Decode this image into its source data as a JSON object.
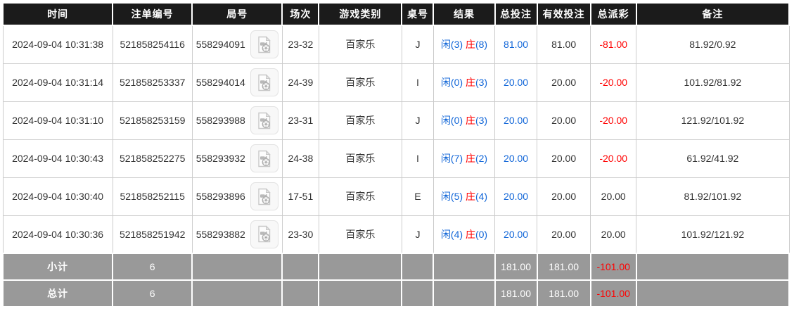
{
  "table": {
    "headers": [
      "时间",
      "注单编号",
      "局号",
      "场次",
      "游戏类别",
      "桌号",
      "结果",
      "总投注",
      "有效投注",
      "总派彩",
      "备注"
    ],
    "rows": [
      {
        "time": "2024-09-04 10:31:38",
        "bet_no": "521858254116",
        "round_no": "558294091",
        "session": "23-32",
        "game_type": "百家乐",
        "table_no": "J",
        "result_player": "闲(3)",
        "result_banker": "庄",
        "result_banker_count": "(8)",
        "total_bet": "81.00",
        "valid_bet": "81.00",
        "payout": "-81.00",
        "remark": "81.92/0.92"
      },
      {
        "time": "2024-09-04 10:31:14",
        "bet_no": "521858253337",
        "round_no": "558294014",
        "session": "24-39",
        "game_type": "百家乐",
        "table_no": "I",
        "result_player": "闲(0)",
        "result_banker": "庄",
        "result_banker_count": "(3)",
        "total_bet": "20.00",
        "valid_bet": "20.00",
        "payout": "-20.00",
        "remark": "101.92/81.92"
      },
      {
        "time": "2024-09-04 10:31:10",
        "bet_no": "521858253159",
        "round_no": "558293988",
        "session": "23-31",
        "game_type": "百家乐",
        "table_no": "J",
        "result_player": "闲(0)",
        "result_banker": "庄",
        "result_banker_count": "(3)",
        "total_bet": "20.00",
        "valid_bet": "20.00",
        "payout": "-20.00",
        "remark": "121.92/101.92"
      },
      {
        "time": "2024-09-04 10:30:43",
        "bet_no": "521858252275",
        "round_no": "558293932",
        "session": "24-38",
        "game_type": "百家乐",
        "table_no": "I",
        "result_player": "闲(7)",
        "result_banker": "庄",
        "result_banker_count": "(2)",
        "total_bet": "20.00",
        "valid_bet": "20.00",
        "payout": "-20.00",
        "remark": "61.92/41.92"
      },
      {
        "time": "2024-09-04 10:30:40",
        "bet_no": "521858252115",
        "round_no": "558293896",
        "session": "17-51",
        "game_type": "百家乐",
        "table_no": "E",
        "result_player": "闲(5)",
        "result_banker": "庄",
        "result_banker_count": "(4)",
        "total_bet": "20.00",
        "valid_bet": "20.00",
        "payout": "20.00",
        "remark": "81.92/101.92"
      },
      {
        "time": "2024-09-04 10:30:36",
        "bet_no": "521858251942",
        "round_no": "558293882",
        "session": "23-30",
        "game_type": "百家乐",
        "table_no": "J",
        "result_player": "闲(4)",
        "result_banker": "庄",
        "result_banker_count": "(0)",
        "total_bet": "20.00",
        "valid_bet": "20.00",
        "payout": "20.00",
        "remark": "101.92/121.92"
      }
    ],
    "summary_rows": [
      {
        "label": "小计",
        "count": "6",
        "total_bet": "181.00",
        "valid_bet": "181.00",
        "payout": "-101.00"
      },
      {
        "label": "总计",
        "count": "6",
        "total_bet": "181.00",
        "valid_bet": "181.00",
        "payout": "-101.00"
      }
    ]
  },
  "icons": {
    "round_video": "video-replay-icon"
  },
  "colors": {
    "header_bg": "#1b1b1b",
    "summary_bg": "#999999",
    "blue": "#1166d8",
    "red": "#ff0000",
    "border": "#cccccc"
  }
}
